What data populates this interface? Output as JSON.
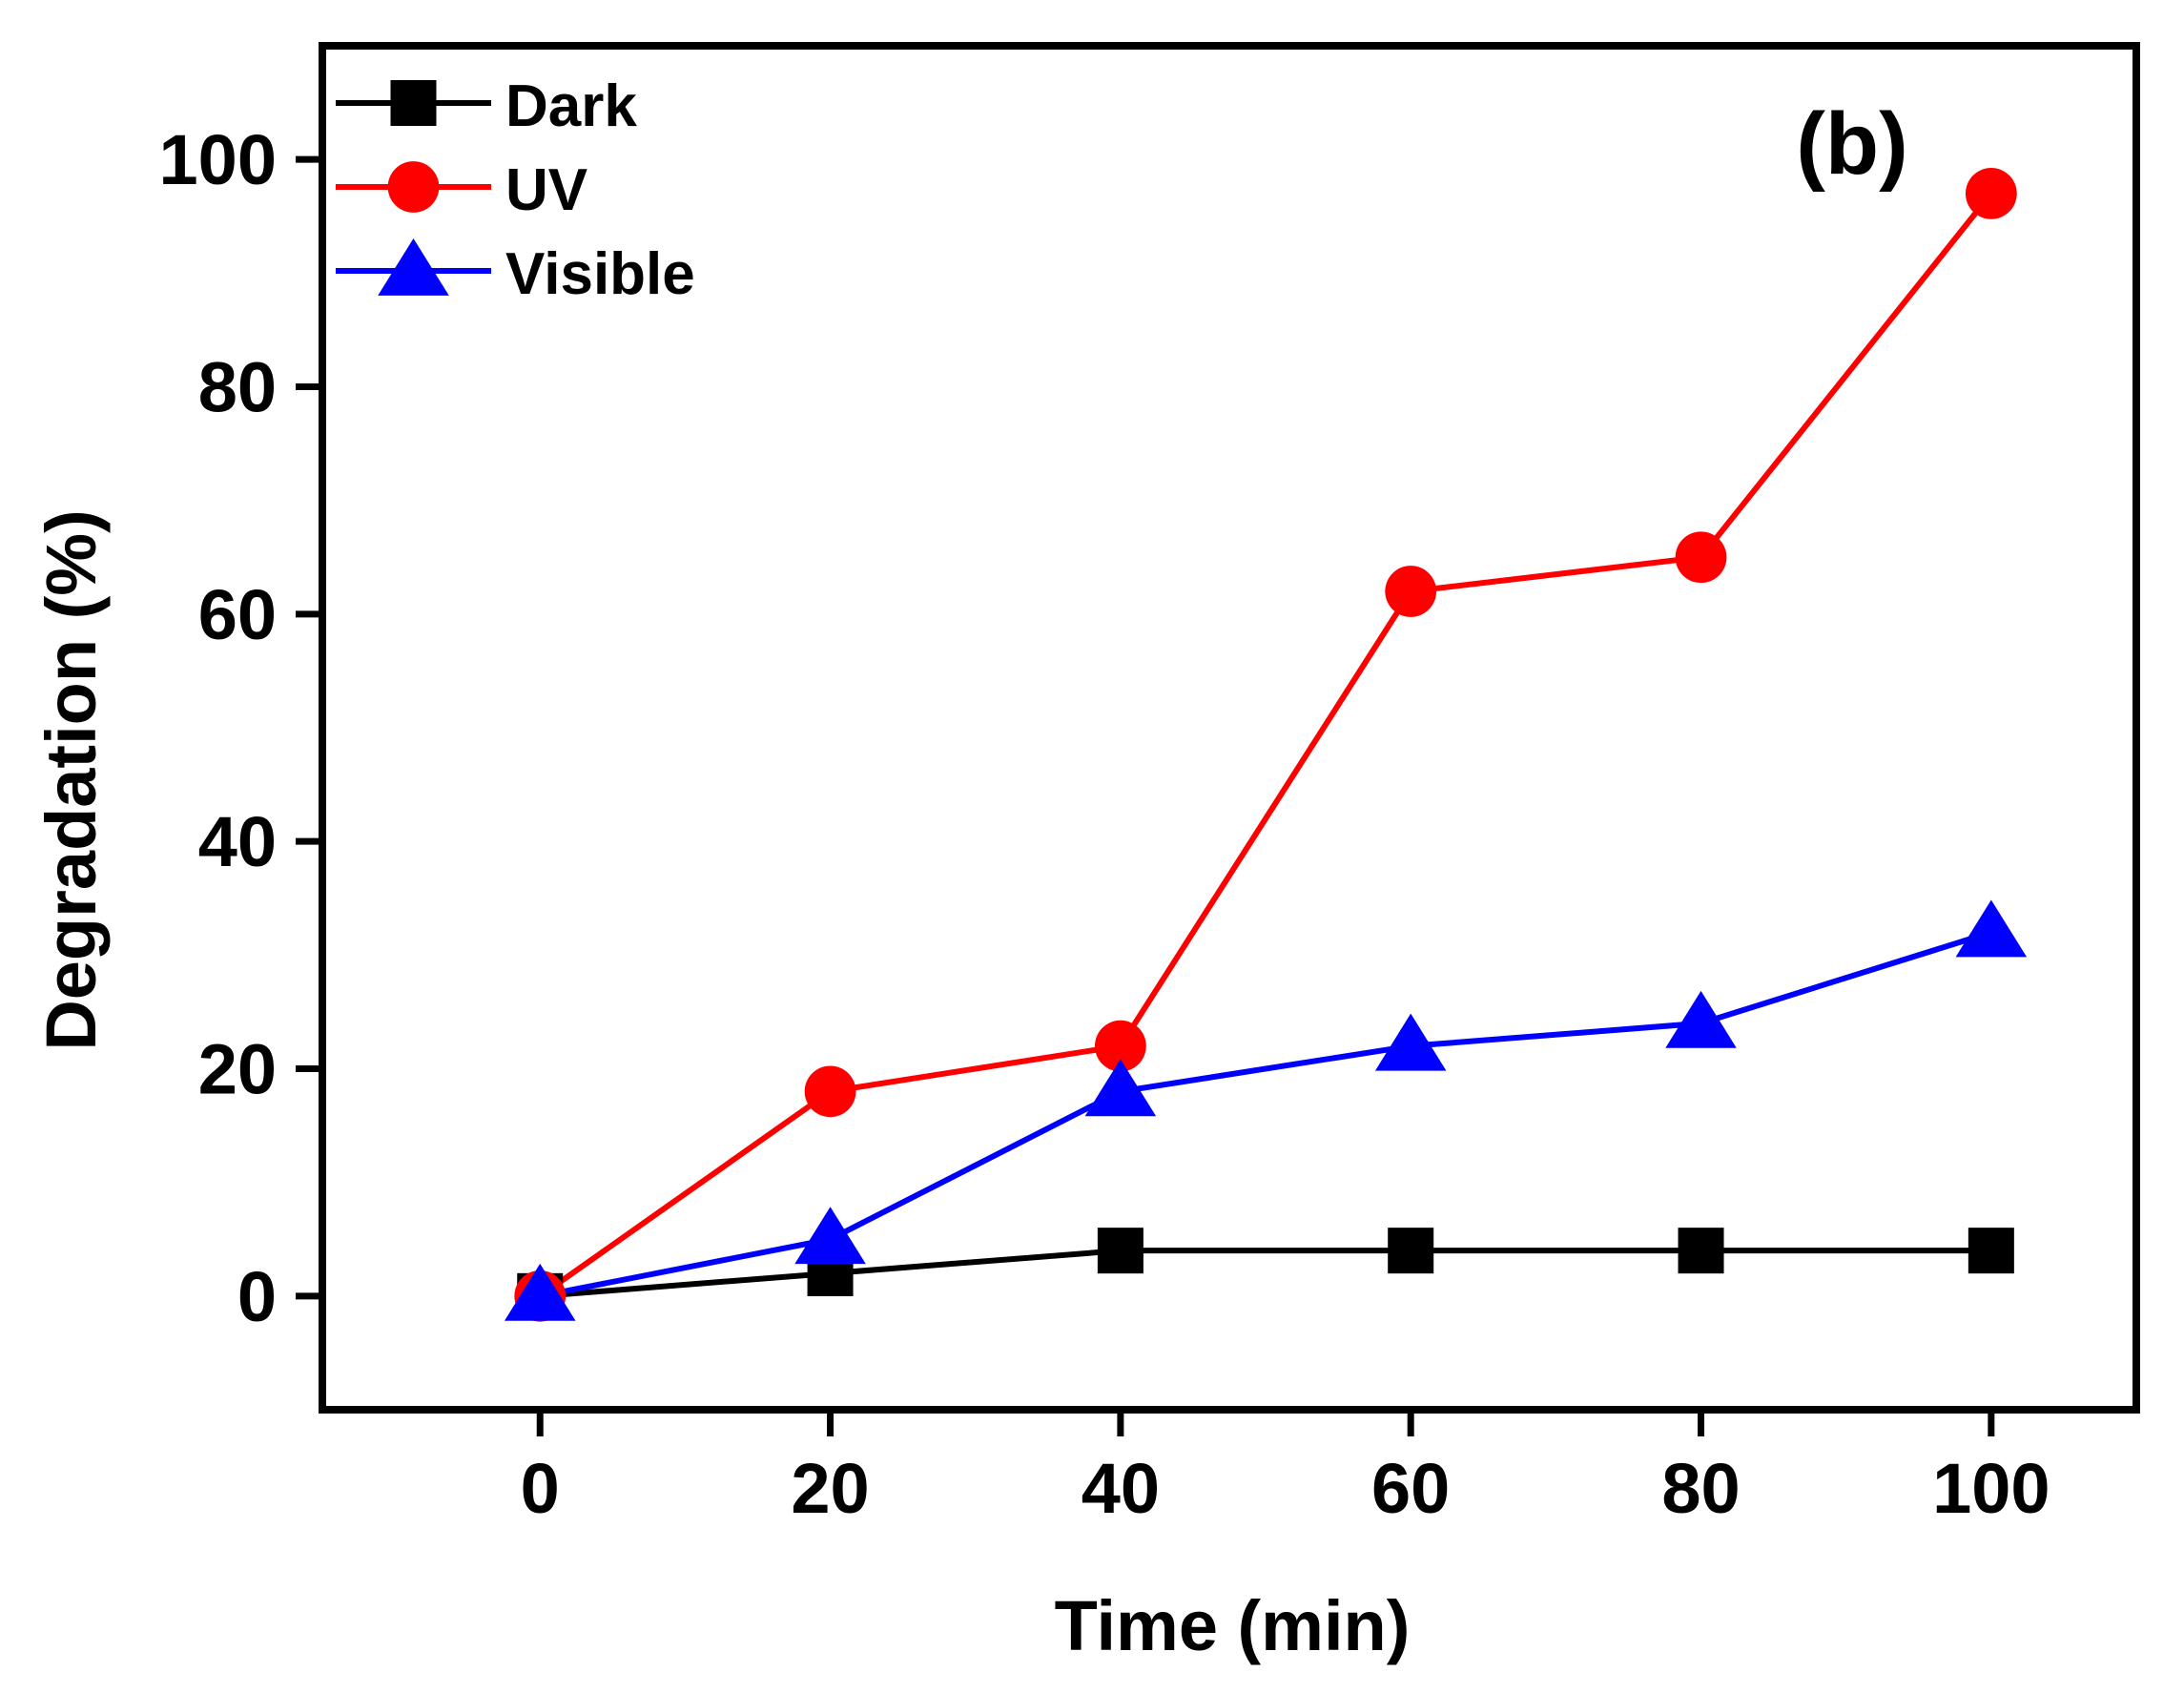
{
  "chart_data": {
    "type": "line",
    "panel_label": "(b)",
    "title": "",
    "xlabel": "Time (min)",
    "ylabel": "Degradation (%)",
    "xlim": [
      -15,
      110
    ],
    "ylim": [
      -10,
      110
    ],
    "xticks": [
      0,
      20,
      40,
      60,
      80,
      100
    ],
    "yticks": [
      0,
      20,
      40,
      60,
      80,
      100
    ],
    "x": [
      0,
      20,
      40,
      60,
      80,
      100
    ],
    "grid": false,
    "legend_position": "top-left",
    "series": [
      {
        "name": "Dark",
        "color": "#000000",
        "marker": "square",
        "values": [
          0,
          2,
          4,
          4,
          4,
          4
        ]
      },
      {
        "name": "UV",
        "color": "#ff0000",
        "marker": "circle",
        "values": [
          0,
          18,
          22,
          62,
          65,
          97
        ]
      },
      {
        "name": "Visible",
        "color": "#0000ff",
        "marker": "triangle",
        "values": [
          0,
          5,
          18,
          22,
          24,
          32
        ]
      }
    ]
  }
}
